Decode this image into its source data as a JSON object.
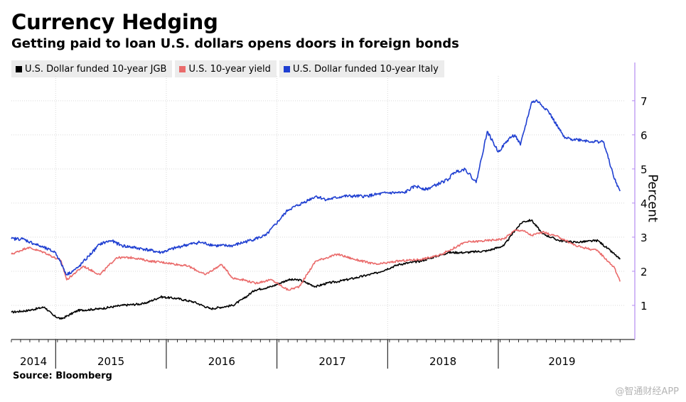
{
  "header": {
    "title": "Currency Hedging",
    "subtitle": "Getting paid to loan U.S. dollars opens doors in foreign bonds"
  },
  "footer": {
    "source": "Source: Bloomberg",
    "watermark": "@智通财经APP"
  },
  "chart_data": {
    "type": "line",
    "ylabel": "Percent",
    "ylim": [
      0,
      7.6
    ],
    "yticks": [
      "1",
      "2",
      "3",
      "4",
      "5",
      "6",
      "7"
    ],
    "xlim": [
      2014.0,
      2019.55
    ],
    "xtick_labels": [
      "2014",
      "2015",
      "2016",
      "2017",
      "2018",
      "2019"
    ],
    "y_axis_position": "right",
    "grid": true,
    "legend_position": "top-left",
    "series": [
      {
        "name": "U.S. Dollar funded 10-year JGB",
        "color": "#000000",
        "x": [
          2014.0,
          2014.15,
          2014.3,
          2014.38,
          2014.45,
          2014.6,
          2014.8,
          2015.0,
          2015.2,
          2015.35,
          2015.5,
          2015.65,
          2015.8,
          2016.0,
          2016.1,
          2016.2,
          2016.35,
          2016.5,
          2016.6,
          2016.75,
          2016.85,
          2016.95,
          2017.1,
          2017.3,
          2017.5,
          2017.7,
          2017.85,
          2017.95,
          2018.1,
          2018.3,
          2018.45,
          2018.55,
          2018.62,
          2018.7,
          2018.8,
          2018.95,
          2019.1,
          2019.3,
          2019.45,
          2019.5
        ],
        "y": [
          0.8,
          0.85,
          0.95,
          0.7,
          0.6,
          0.85,
          0.9,
          1.0,
          1.05,
          1.25,
          1.2,
          1.1,
          0.9,
          1.0,
          1.2,
          1.45,
          1.55,
          1.75,
          1.75,
          1.55,
          1.65,
          1.7,
          1.8,
          1.95,
          2.2,
          2.3,
          2.45,
          2.55,
          2.55,
          2.6,
          2.75,
          3.2,
          3.45,
          3.5,
          3.1,
          2.9,
          2.85,
          2.9,
          2.5,
          2.35
        ]
      },
      {
        "name": "U.S. 10-year yield",
        "color": "#ea6b6b",
        "x": [
          2014.0,
          2014.15,
          2014.3,
          2014.45,
          2014.5,
          2014.65,
          2014.8,
          2014.95,
          2015.1,
          2015.25,
          2015.4,
          2015.6,
          2015.75,
          2015.9,
          2016.0,
          2016.1,
          2016.2,
          2016.35,
          2016.5,
          2016.6,
          2016.75,
          2016.85,
          2016.95,
          2017.1,
          2017.3,
          2017.5,
          2017.7,
          2017.85,
          2017.95,
          2018.1,
          2018.3,
          2018.45,
          2018.55,
          2018.62,
          2018.7,
          2018.8,
          2018.95,
          2019.1,
          2019.3,
          2019.45,
          2019.5
        ],
        "y": [
          2.5,
          2.7,
          2.55,
          2.3,
          1.75,
          2.15,
          1.9,
          2.4,
          2.4,
          2.3,
          2.25,
          2.15,
          1.9,
          2.2,
          1.8,
          1.75,
          1.65,
          1.75,
          1.45,
          1.55,
          2.3,
          2.4,
          2.5,
          2.35,
          2.2,
          2.3,
          2.35,
          2.45,
          2.6,
          2.85,
          2.9,
          2.95,
          3.2,
          3.2,
          3.05,
          3.15,
          3.0,
          2.75,
          2.6,
          2.1,
          1.7
        ]
      },
      {
        "name": "U.S. Dollar funded 10-year Italy",
        "color": "#1f3fd1",
        "x": [
          2014.0,
          2014.1,
          2014.25,
          2014.4,
          2014.5,
          2014.6,
          2014.8,
          2014.9,
          2015.0,
          2015.2,
          2015.35,
          2015.55,
          2015.7,
          2015.85,
          2016.0,
          2016.15,
          2016.3,
          2016.5,
          2016.6,
          2016.75,
          2016.85,
          2017.0,
          2017.2,
          2017.4,
          2017.55,
          2017.65,
          2017.75,
          2017.95,
          2018.0,
          2018.1,
          2018.2,
          2018.3,
          2018.4,
          2018.5,
          2018.55,
          2018.6,
          2018.7,
          2018.75,
          2018.85,
          2019.0,
          2019.15,
          2019.25,
          2019.35,
          2019.45,
          2019.5
        ],
        "y": [
          2.95,
          2.95,
          2.75,
          2.55,
          1.9,
          2.1,
          2.8,
          2.9,
          2.75,
          2.65,
          2.55,
          2.75,
          2.85,
          2.75,
          2.75,
          2.9,
          3.05,
          3.8,
          3.95,
          4.2,
          4.1,
          4.2,
          4.2,
          4.3,
          4.3,
          4.5,
          4.4,
          4.7,
          4.9,
          5.0,
          4.6,
          6.1,
          5.5,
          5.9,
          6.0,
          5.7,
          6.95,
          7.0,
          6.7,
          5.9,
          5.85,
          5.8,
          5.8,
          4.7,
          4.35
        ]
      }
    ]
  }
}
